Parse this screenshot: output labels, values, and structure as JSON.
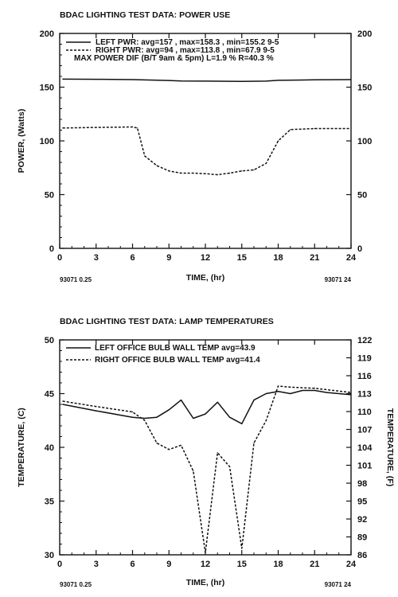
{
  "chart_data": [
    {
      "type": "line",
      "title": "BDAC LIGHTING TEST DATA: POWER USE",
      "xlabel": "TIME, (hr)",
      "ylabel": "POWER, (Watts)",
      "xlim": [
        0,
        24
      ],
      "ylim": [
        0,
        200
      ],
      "xticks": [
        "0",
        "3",
        "6",
        "9",
        "12",
        "15",
        "18",
        "21",
        "24"
      ],
      "yticks": [
        "0",
        "50",
        "100",
        "150",
        "200"
      ],
      "yticks_right": [
        "0",
        "50",
        "100",
        "150",
        "200"
      ],
      "grid": false,
      "legend_position": "top",
      "legend": [
        "LEFT PWR: avg=157 , max=158.3 , min=155.2 9-5",
        "RIGHT PWR: avg=94 , max=113.8 , min=67.9 9-5",
        "MAX POWER DIF (B/T 9am & 5pm) L=1.9 % R=40.3 %"
      ],
      "footer_left": "93071 0.25",
      "footer_right": "93071 24",
      "series": [
        {
          "style": "solid",
          "x": [
            0.25,
            3,
            6,
            9,
            10,
            12,
            15,
            17,
            18,
            21,
            24
          ],
          "y": [
            157.5,
            157.3,
            157,
            156.2,
            155.8,
            155.6,
            155.4,
            155.6,
            156.4,
            156.8,
            157
          ]
        },
        {
          "style": "dashed",
          "x": [
            0.25,
            3,
            6,
            6.4,
            7,
            8,
            9,
            10,
            11,
            12,
            13,
            14,
            15,
            16,
            17,
            18,
            19,
            21,
            24
          ],
          "y": [
            112,
            112.5,
            113,
            112,
            86,
            77,
            72,
            70,
            70,
            69.5,
            68.5,
            70,
            72,
            73,
            79,
            100,
            110.5,
            111.5,
            111.5
          ]
        }
      ]
    },
    {
      "type": "line",
      "title": "BDAC LIGHTING TEST DATA: LAMP TEMPERATURES",
      "xlabel": "TIME, (hr)",
      "ylabel": "TEMPERATURE, (C)",
      "ylabel_right": "TEMPERATURE, (F)",
      "xlim": [
        0,
        24
      ],
      "ylim": [
        30,
        50
      ],
      "ylim_right": [
        86,
        122
      ],
      "xticks": [
        "0",
        "3",
        "6",
        "9",
        "12",
        "15",
        "18",
        "21",
        "24"
      ],
      "yticks": [
        "30",
        "35",
        "40",
        "45",
        "50"
      ],
      "yticks_right": [
        "86",
        "89",
        "92",
        "95",
        "98",
        "101",
        "104",
        "107",
        "110",
        "113",
        "116",
        "119",
        "122"
      ],
      "grid": false,
      "legend_position": "top",
      "legend": [
        "LEFT OFFICE BULB WALL TEMP avg=43.9",
        "RIGHT OFFICE BULB WALL TEMP avg=41.4"
      ],
      "footer_left": "93071 0.25",
      "footer_right": "93071 24",
      "series": [
        {
          "style": "solid",
          "x": [
            0.25,
            3,
            6,
            7,
            8,
            9,
            10,
            11,
            12,
            13,
            14,
            15,
            16,
            17,
            18,
            19,
            20,
            21,
            22,
            24
          ],
          "y": [
            44.0,
            43.4,
            42.8,
            42.7,
            42.8,
            43.5,
            44.4,
            42.7,
            43.1,
            44.2,
            42.8,
            42.2,
            44.4,
            45.0,
            45.2,
            45.0,
            45.3,
            45.3,
            45.1,
            44.9
          ]
        },
        {
          "style": "dashed",
          "x": [
            0.25,
            3,
            6,
            7,
            8,
            9,
            10,
            11,
            12,
            13,
            14,
            15,
            16,
            17,
            18,
            19,
            21,
            24
          ],
          "y": [
            44.3,
            43.8,
            43.3,
            42.5,
            40.4,
            39.8,
            40.2,
            37.8,
            30.2,
            39.5,
            38.2,
            30.6,
            40.4,
            42.5,
            45.7,
            45.6,
            45.5,
            45.1
          ]
        }
      ]
    }
  ]
}
